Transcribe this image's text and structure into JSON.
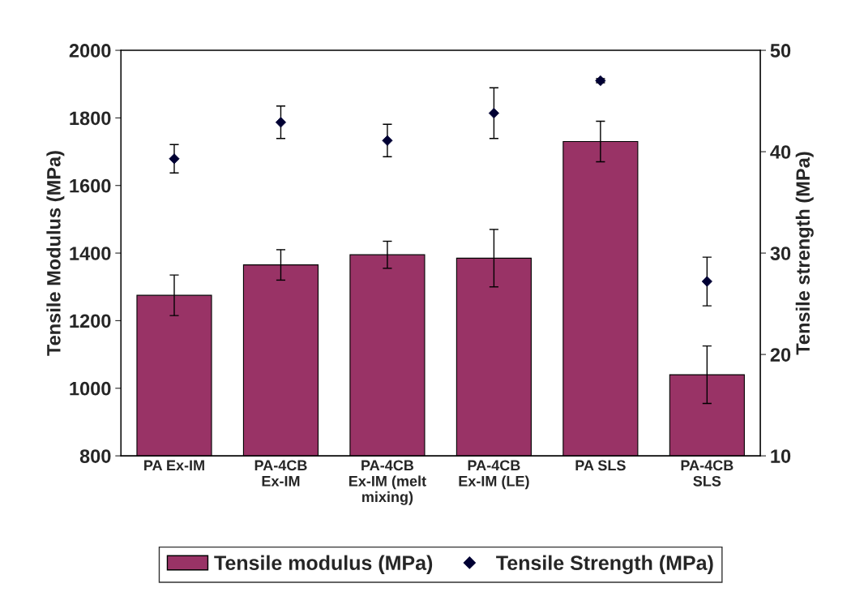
{
  "chart_data": {
    "type": "bar",
    "categories": [
      "PA Ex-IM",
      "PA-4CB\nEx-IM",
      "PA-4CB\nEx-IM (melt\nmixing)",
      "PA-4CB\nEx-IM (LE)",
      "PA SLS",
      "PA-4CB\nSLS"
    ],
    "ylabel": "Tensile Modulus (MPa)",
    "y2label": "Tensile strength (MPa)",
    "ylim": [
      800,
      2000
    ],
    "yticks": [
      800,
      1000,
      1200,
      1400,
      1600,
      1800,
      2000
    ],
    "y2lim": [
      10,
      50
    ],
    "y2ticks": [
      10,
      20,
      30,
      40,
      50
    ],
    "grid": false,
    "legend": "bottom",
    "marker": "diamond",
    "series": [
      {
        "name": "Tensile modulus (MPa)",
        "color": "#993366",
        "values": [
          1275,
          1365,
          1395,
          1385,
          1730,
          1040
        ],
        "errors": [
          60,
          45,
          40,
          85,
          60,
          85
        ]
      },
      {
        "name": "Tensile Strength (MPa)",
        "type": "scatter",
        "axis": "y2",
        "color": "#000033",
        "values": [
          39.3,
          42.9,
          41.1,
          43.8,
          47.0,
          27.2
        ],
        "errors": [
          1.4,
          1.6,
          1.6,
          2.5,
          0.2,
          2.4
        ]
      }
    ]
  }
}
